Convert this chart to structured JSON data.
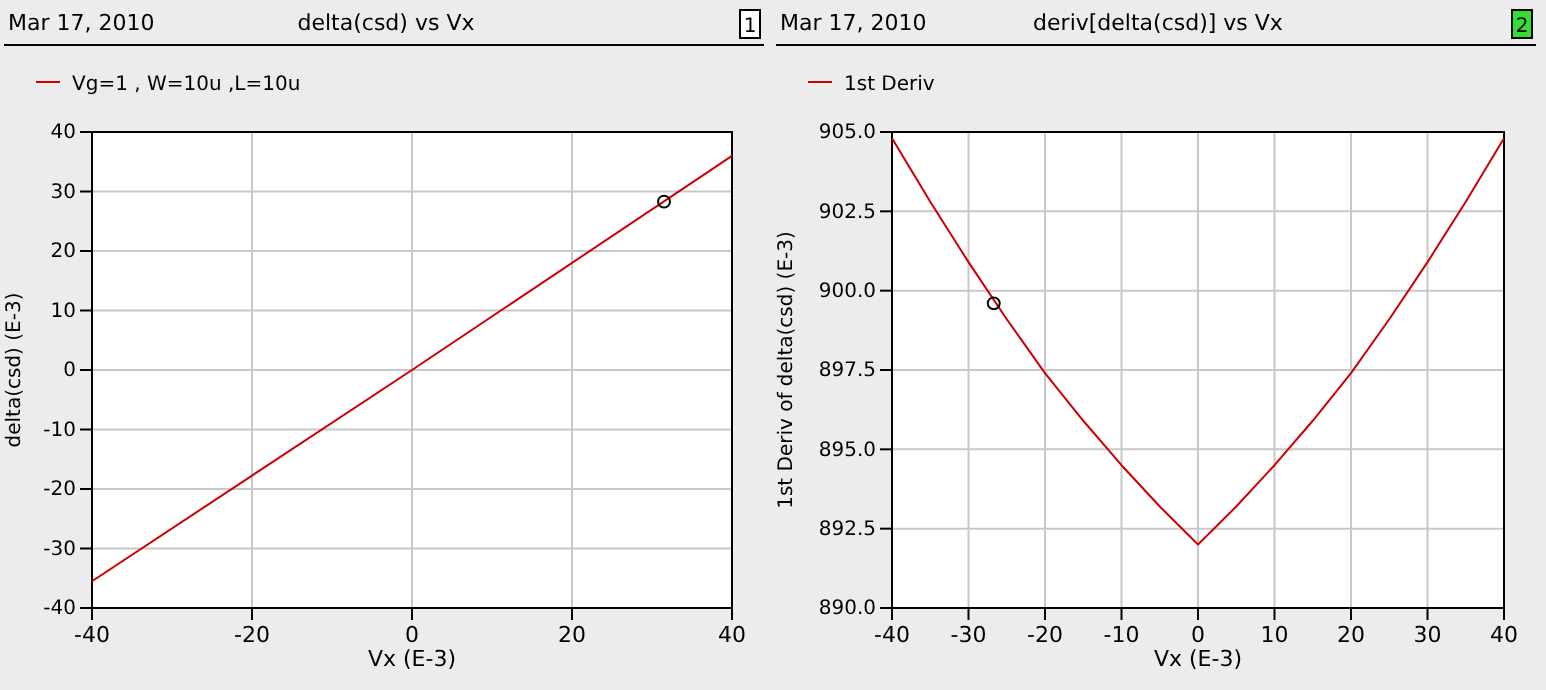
{
  "chart_data": [
    {
      "type": "line",
      "title": "delta(csd) vs Vx",
      "xlabel": "Vx (E-3)",
      "ylabel": "delta(csd) (E-3)",
      "annotations": [
        "Mar 17, 2010",
        "1"
      ],
      "legend": "top left",
      "grid": true,
      "xlim": [
        -40,
        40
      ],
      "xticks": [
        -40,
        -20,
        0,
        20,
        40
      ],
      "ylim": [
        -40,
        40
      ],
      "yticks": [
        -40,
        -30,
        -20,
        -10,
        0,
        10,
        20,
        30,
        40
      ],
      "series": [
        {
          "name": "Vg=1 , W=10u ,L=10u",
          "color": "#cc0000",
          "x": [
            -40,
            0,
            40
          ],
          "values": [
            -35.5,
            0,
            36
          ],
          "line_style": "solid"
        },
        {
          "type": "scatter",
          "color": "#000000",
          "x": [
            31.5
          ],
          "values": [
            28.3
          ],
          "marker": "circle"
        }
      ]
    },
    {
      "type": "line",
      "title": "deriv[delta(csd)] vs Vx",
      "xlabel": "Vx (E-3)",
      "ylabel": "1st Deriv of delta(csd) (E-3)",
      "annotations": [
        "Mar 17, 2010",
        "2"
      ],
      "legend": "top left",
      "grid": true,
      "xlim": [
        -40,
        40
      ],
      "xticks": [
        -40,
        -30,
        -20,
        -10,
        0,
        10,
        20,
        30,
        40
      ],
      "ylim": [
        890,
        905
      ],
      "yticks": [
        {
          "value": 890,
          "label": "890.0"
        },
        {
          "value": 892.5,
          "label": "892.5"
        },
        {
          "value": 895,
          "label": "895.0"
        },
        {
          "value": 897.5,
          "label": "897.5"
        },
        {
          "value": 900,
          "label": "900.0"
        },
        {
          "value": 902.5,
          "label": "902.5"
        },
        {
          "value": 905,
          "label": "905.0"
        }
      ],
      "series": [
        {
          "name": "1st Deriv",
          "color": "#cc0000",
          "x": [
            -40,
            -35,
            -30,
            -25,
            -20,
            -15,
            -10,
            -5,
            0,
            5,
            10,
            15,
            20,
            25,
            30,
            35,
            40
          ],
          "values": [
            904.8,
            902.8,
            900.9,
            899.1,
            897.4,
            895.9,
            894.5,
            893.2,
            892.0,
            893.2,
            894.5,
            895.9,
            897.4,
            899.1,
            900.9,
            902.8,
            904.8
          ],
          "line_style": "solid"
        },
        {
          "type": "scatter",
          "color": "#000000",
          "x": [
            -26.7
          ],
          "values": [
            899.6
          ],
          "marker": "circle"
        }
      ]
    }
  ]
}
